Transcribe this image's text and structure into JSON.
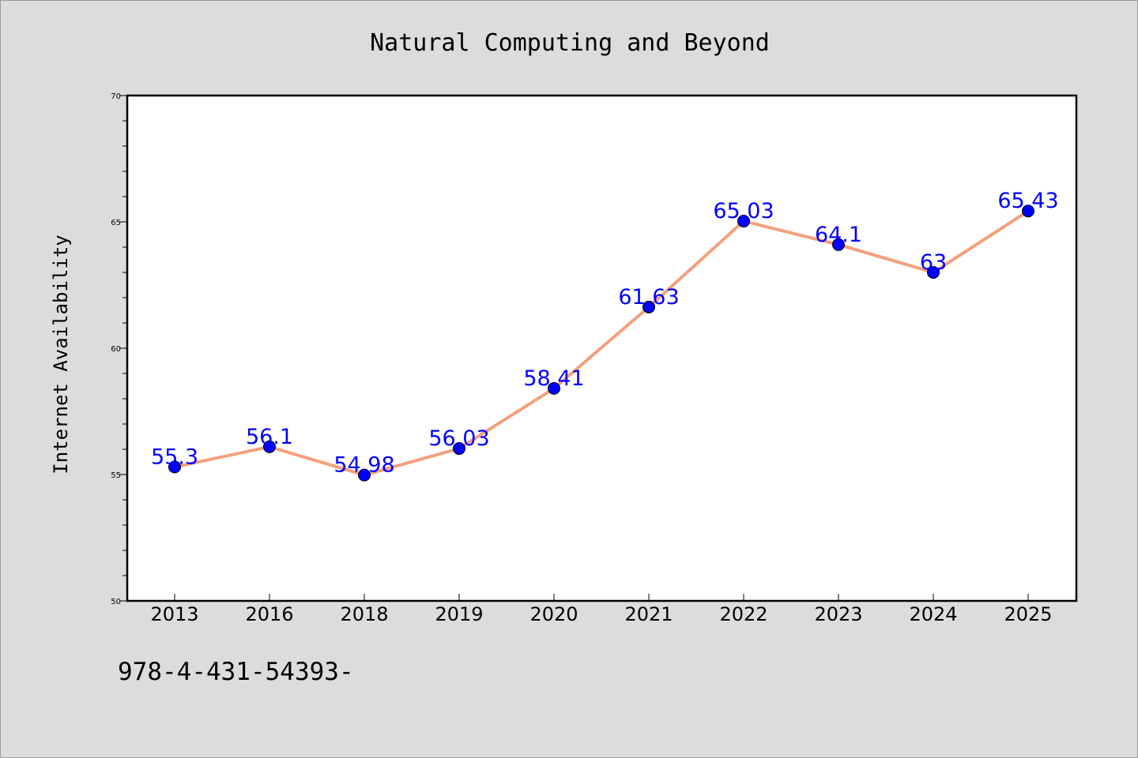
{
  "chart_data": {
    "type": "line",
    "title": "Natural Computing and Beyond",
    "ylabel": "Internet Availability",
    "xlabel": "",
    "categories": [
      "2013",
      "2016",
      "2018",
      "2019",
      "2020",
      "2021",
      "2022",
      "2023",
      "2024",
      "2025"
    ],
    "series": [
      {
        "values": [
          55.3,
          56.1,
          54.98,
          56.03,
          58.41,
          61.63,
          65.03,
          64.1,
          63,
          65.43
        ],
        "data_labels": [
          "55.3",
          "56.1",
          "54.98",
          "56.03",
          "58.41",
          "61.63",
          "65.03",
          "64.1",
          "63",
          "65.43"
        ],
        "line_color": "#f4a07c",
        "marker_color": "#0000ff"
      }
    ],
    "ylim": [
      50,
      70
    ],
    "yticks": [
      50,
      55,
      60,
      65,
      70
    ],
    "ytick_labels": [
      "50",
      "55",
      "60",
      "65",
      "70"
    ],
    "grid": false,
    "legend": "none",
    "plot_background": "#ffffff",
    "page_background": "#dcdcdc"
  },
  "footer_text": "978-4-431-54393-"
}
